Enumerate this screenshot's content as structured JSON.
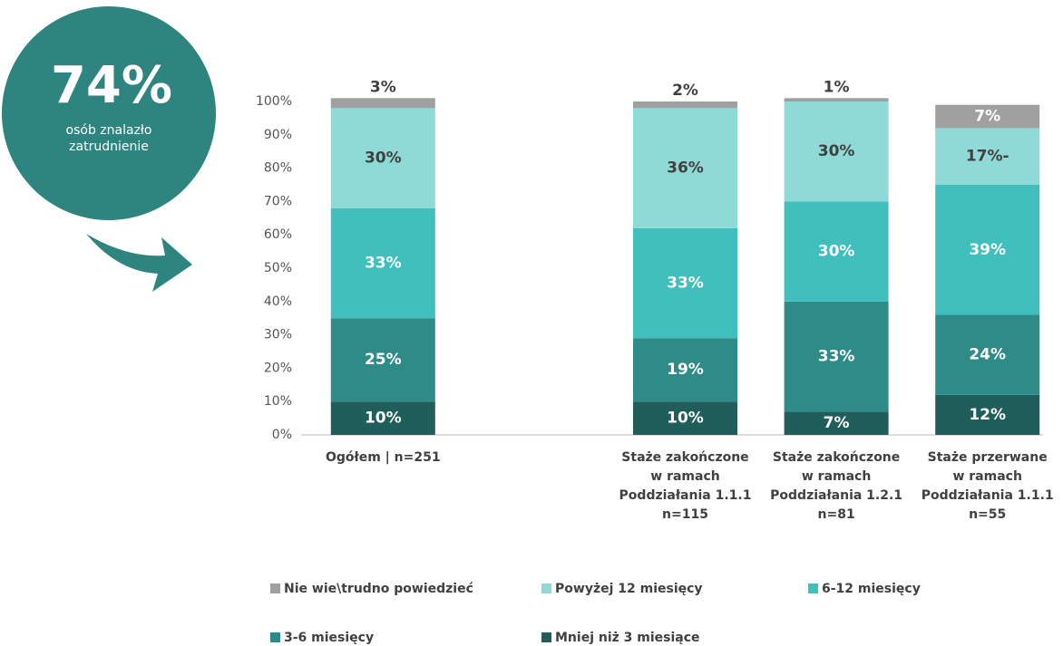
{
  "chart_data": {
    "type": "stacked_bar",
    "annotations": [
      "74%",
      "osób znalazło zatrudnienie"
    ],
    "categories": [
      "Ogółem | n=251",
      null,
      "Staże zakończone\nw ramach\nPoddziałania 1.1.1\nn=115",
      "Staże zakończone\nw ramach\nPoddziałania 1.2.1\nn=81",
      "Staże przerwane\nw ramach\nPoddziałania 1.1.1\nn=55"
    ],
    "series": [
      {
        "name": "Nie wie\\trudno powiedzieć",
        "color": "#a0a0a0",
        "label_color": "#ffffff",
        "values": [
          3,
          null,
          2,
          1,
          7
        ],
        "value_labels": [
          "3%",
          null,
          "2%",
          "1%",
          "7%"
        ]
      },
      {
        "name": "Powyżej 12 miesięcy",
        "color": "#8fd9d7",
        "label_color": "#404040",
        "values": [
          30,
          null,
          36,
          30,
          17
        ],
        "value_labels": [
          "30%",
          null,
          "36%",
          "30%",
          "17%-"
        ]
      },
      {
        "name": "6-12 miesięcy",
        "color": "#40bfbd",
        "label_color": "#ffffff",
        "values": [
          33,
          null,
          33,
          30,
          39
        ],
        "value_labels": [
          "33%",
          null,
          "33%",
          "30%",
          "39%"
        ]
      },
      {
        "name": "3-6 miesięcy",
        "color": "#2e8b87",
        "label_color": "#ffffff",
        "values": [
          25,
          null,
          19,
          33,
          24
        ],
        "value_labels": [
          "25%",
          null,
          "19%",
          "33%",
          "24%"
        ]
      },
      {
        "name": "Mniej niż 3 miesiące",
        "color": "#1f5e5a",
        "label_color": "#ffffff",
        "values": [
          10,
          null,
          10,
          7,
          12
        ],
        "value_labels": [
          "10%",
          null,
          "10%",
          "7%",
          "12%"
        ]
      }
    ],
    "ylim": [
      0,
      100
    ],
    "yticks": [
      {
        "value": 0,
        "label": "0%"
      },
      {
        "value": 10,
        "label": "10%"
      },
      {
        "value": 20,
        "label": "20%"
      },
      {
        "value": 30,
        "label": "30%"
      },
      {
        "value": 40,
        "label": "40%"
      },
      {
        "value": 50,
        "label": "50%"
      },
      {
        "value": 60,
        "label": "60%"
      },
      {
        "value": 70,
        "label": "70%"
      },
      {
        "value": 80,
        "label": "80%"
      },
      {
        "value": 90,
        "label": "90%"
      },
      {
        "value": 100,
        "label": "100%"
      }
    ]
  }
}
